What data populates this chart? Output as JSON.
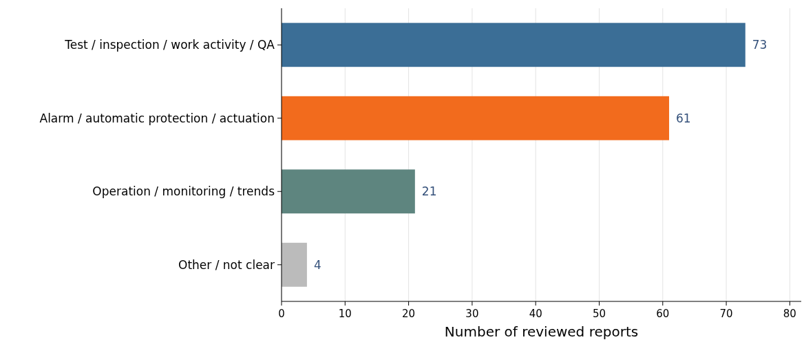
{
  "chart_data": {
    "type": "bar",
    "orientation": "horizontal",
    "xlabel": "Number of reviewed reports",
    "categories": [
      "Test / inspection / work activity / QA",
      "Alarm / automatic protection / actuation",
      "Operation / monitoring / trends",
      "Other / not clear"
    ],
    "values": [
      73,
      61,
      21,
      4
    ],
    "colors": [
      "#3b6e96",
      "#f26b1d",
      "#5e857f",
      "#bbbbbb"
    ],
    "xlim": [
      0,
      81.8
    ],
    "xticks": [
      0,
      10,
      20,
      30,
      40,
      50,
      60,
      70,
      80
    ],
    "grid": "x",
    "data_labels": true
  }
}
